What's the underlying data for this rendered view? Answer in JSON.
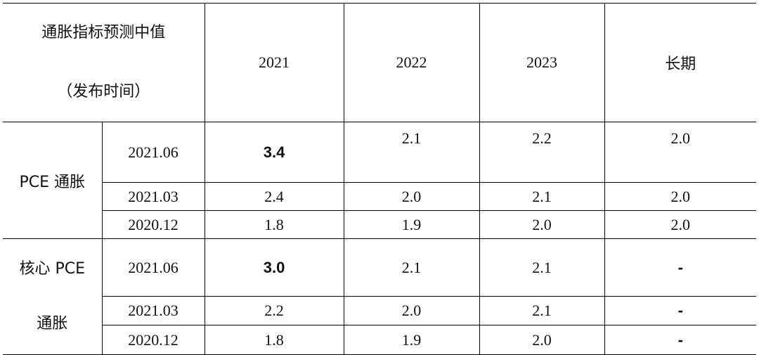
{
  "header": {
    "title_line1": "通胀指标预测中值",
    "title_line2": "（发布时间）",
    "years": [
      "2021",
      "2022",
      "2023",
      "长期"
    ]
  },
  "groups": [
    {
      "label_line1": "PCE 通胀",
      "label_line2": "",
      "rows": [
        {
          "date": "2021.06",
          "v2021": "3.4",
          "v2022": "2.1",
          "v2023": "2.2",
          "long": "2.0"
        },
        {
          "date": "2021.03",
          "v2021": "2.4",
          "v2022": "2.0",
          "v2023": "2.1",
          "long": "2.0"
        },
        {
          "date": "2020.12",
          "v2021": "1.8",
          "v2022": "1.9",
          "v2023": "2.0",
          "long": "2.0"
        }
      ]
    },
    {
      "label_line1": "核心 PCE",
      "label_line2": "通胀",
      "rows": [
        {
          "date": "2021.06",
          "v2021": "3.0",
          "v2022": "2.1",
          "v2023": "2.1",
          "long": "-"
        },
        {
          "date": "2021.03",
          "v2021": "2.2",
          "v2022": "2.0",
          "v2023": "2.1",
          "long": "-"
        },
        {
          "date": "2020.12",
          "v2021": "1.8",
          "v2022": "1.9",
          "v2023": "2.0",
          "long": "-"
        }
      ]
    }
  ]
}
